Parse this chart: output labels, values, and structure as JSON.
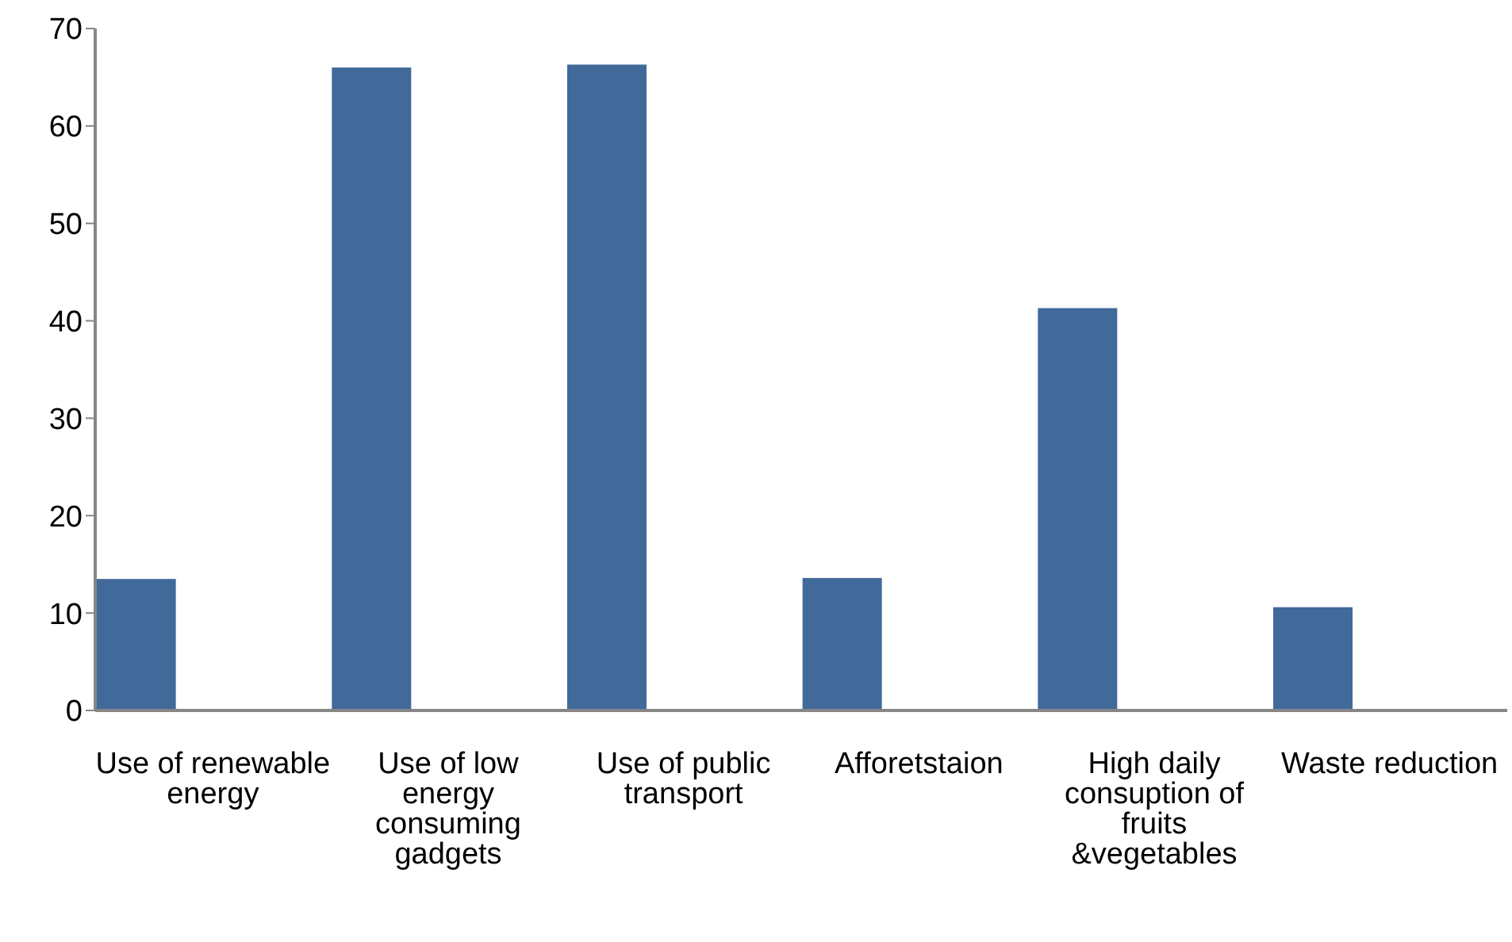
{
  "chart_data": {
    "type": "bar",
    "categories": [
      "Use of renewable energy",
      "Use of low energy consuming gadgets",
      "Use of public transport",
      "Afforetstaion",
      "High daily consuption of fruits &vegetables",
      "Waste reduction"
    ],
    "values": [
      13.5,
      66.0,
      66.3,
      13.6,
      41.3,
      10.6
    ],
    "color": "#416a9b",
    "ylim": [
      0,
      70
    ],
    "yticks": [
      0,
      10,
      20,
      30,
      40,
      50,
      60,
      70
    ],
    "grid": false,
    "legend": false
  }
}
